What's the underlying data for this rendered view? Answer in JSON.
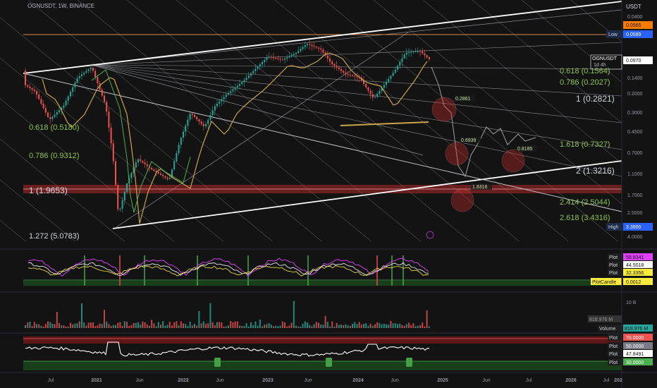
{
  "header": {
    "symbol_line": "OGNUSDT, 1W, BINANCE",
    "currency": "USDT"
  },
  "colors": {
    "background": "#131313",
    "up": "#26a69a",
    "down": "#ef5350",
    "fib_label": "#8bc34a",
    "channel": "#ffffff",
    "resistance": "#e08a4d",
    "support_band": "#d32f2f",
    "ma": "#c8a44a",
    "rsi": "#ffffff"
  },
  "chart_data": [
    {
      "type": "candlestick",
      "title": "",
      "y_scale": "inverted-log",
      "y_ticks": [
        "0.0400",
        "0.0565",
        "0.0589",
        "0.0970",
        "0.1400",
        "0.2000",
        "0.3000",
        "0.4500",
        "0.7000",
        "1.1000",
        "1.7000",
        "2.5000",
        "4.0000"
      ],
      "price_badges": [
        {
          "label": "",
          "value": "0.0565",
          "color": "#f57c00"
        },
        {
          "label": "Low",
          "value": "0.0589",
          "color": "#2962ff"
        },
        {
          "label": "OGNUSDT",
          "value": "0.0970",
          "sub": "1d 4h",
          "color": "#ffffff"
        },
        {
          "label": "High",
          "value": "3.3900",
          "color": "#2962ff"
        }
      ],
      "x_ticks": [
        "Jul",
        "2021",
        "Jun",
        "2022",
        "Jun",
        "2023",
        "Jun",
        "2024",
        "Jun",
        "2025",
        "Jun",
        "Jul",
        "2026",
        "Jul",
        "202"
      ],
      "fib_levels": [
        {
          "label": "0.618 (0.5180)",
          "side": "left"
        },
        {
          "label": "0.786 (0.9312)",
          "side": "left"
        },
        {
          "label": "1 (1.9653)",
          "side": "left"
        },
        {
          "label": "1.272 (5.0783)",
          "side": "left"
        },
        {
          "label": "0.618 (0.1564)",
          "side": "right"
        },
        {
          "label": "0.786 (0.2027)",
          "side": "right"
        },
        {
          "label": "1 (0.2821)",
          "side": "right"
        },
        {
          "label": "1.618 (0.7327)",
          "side": "right"
        },
        {
          "label": "2 (1.3216)",
          "side": "right"
        },
        {
          "label": "2.414 (2.5044)",
          "side": "right"
        },
        {
          "label": "2.618 (3.4316)",
          "side": "right"
        }
      ],
      "point_labels": [
        "0.2861",
        "0.6939",
        "0.8185",
        "1.8316"
      ]
    },
    {
      "type": "line",
      "title": "",
      "legend": [
        {
          "name": "Plot",
          "value": "58.8341",
          "color": "#e040fb"
        },
        {
          "name": "Plot",
          "value": "44.5018",
          "color": "#ffffff"
        },
        {
          "name": "Plot",
          "value": "32.3356",
          "color": "#ffeb3b"
        },
        {
          "name": "PlotCandle",
          "value": "0.0012",
          "color": "#ffeb3b"
        }
      ]
    },
    {
      "type": "bar",
      "title": "",
      "y_ticks": [
        "10 B"
      ],
      "legend": [
        {
          "name": "",
          "value": "818.976 M",
          "color": "#555555"
        },
        {
          "name": "Volume",
          "value": "818.976 M",
          "color": "#26a69a"
        }
      ]
    },
    {
      "type": "line",
      "title": "",
      "legend": [
        {
          "name": "Plot",
          "value": "70.0000",
          "color": "#ef5350"
        },
        {
          "name": "Plot",
          "value": "50.0000",
          "color": "#787b86"
        },
        {
          "name": "Plot",
          "value": "47.8491",
          "color": "#ffffff"
        },
        {
          "name": "Plot",
          "value": "30.0000",
          "color": "#4caf50"
        }
      ]
    }
  ]
}
